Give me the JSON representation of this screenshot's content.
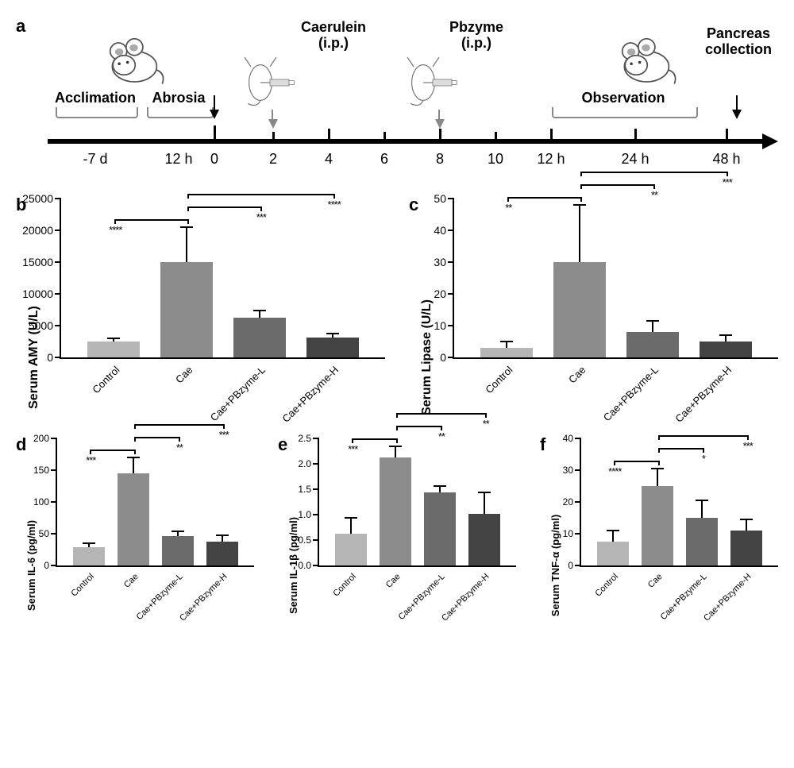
{
  "panel_a": {
    "label": "a",
    "phases": [
      {
        "label": "Acclimation",
        "tick": "-7 d"
      },
      {
        "label": "Abrosia",
        "tick": "12 h"
      }
    ],
    "treatments": [
      {
        "label_line1": "Caerulein",
        "label_line2": "(i.p.)"
      },
      {
        "label_line1": "Pbzyme",
        "label_line2": "(i.p.)"
      }
    ],
    "observation_label": "Observation",
    "end_label": "Pancreas\ncollection",
    "hour_ticks": [
      "0",
      "2",
      "4",
      "6",
      "8",
      "10",
      "12 h",
      "24 h",
      "48 h"
    ]
  },
  "categories": [
    "Control",
    "Cae",
    "Cae+PBzyme-L",
    "Cae+PBzyme-H"
  ],
  "bar_colors": [
    "#b5b5b5",
    "#8c8c8c",
    "#6b6b6b",
    "#434343"
  ],
  "charts": {
    "b": {
      "label": "b",
      "ylabel": "Serum AMY (U/L)",
      "ymax": 25000,
      "ytick_step": 5000,
      "values": [
        2500,
        15000,
        6200,
        3100
      ],
      "errors": [
        500,
        5500,
        1200,
        700
      ],
      "sig": [
        {
          "from": 0,
          "to": 1,
          "level": 0,
          "label": "****"
        },
        {
          "from": 1,
          "to": 2,
          "level": 1,
          "label": "***"
        },
        {
          "from": 1,
          "to": 3,
          "level": 2,
          "label": "****"
        }
      ]
    },
    "c": {
      "label": "c",
      "ylabel": "Serum Lipase (U/L)",
      "ymax": 50,
      "ytick_step": 10,
      "ymin_label_zero": true,
      "dec": 0,
      "values": [
        3,
        30,
        8,
        5
      ],
      "errors": [
        2,
        18,
        3.5,
        2
      ],
      "sig": [
        {
          "from": 0,
          "to": 1,
          "level": 0,
          "label": "**"
        },
        {
          "from": 1,
          "to": 2,
          "level": 1,
          "label": "**"
        },
        {
          "from": 1,
          "to": 3,
          "level": 2,
          "label": "***"
        }
      ]
    },
    "d": {
      "label": "d",
      "ylabel": "Serum IL-6 (pg/ml)",
      "ymax": 200,
      "ytick_step": 50,
      "values": [
        29,
        145,
        46,
        38
      ],
      "errors": [
        6,
        25,
        8,
        9
      ],
      "sig": [
        {
          "from": 0,
          "to": 1,
          "level": 0,
          "label": "***"
        },
        {
          "from": 1,
          "to": 2,
          "level": 1,
          "label": "**"
        },
        {
          "from": 1,
          "to": 3,
          "level": 2,
          "label": "***"
        }
      ]
    },
    "e": {
      "label": "e",
      "ylabel": "Serum IL-1β (pg/ml)",
      "ymax": 2.5,
      "ytick_step": 0.5,
      "dec": 1,
      "values": [
        0.63,
        2.12,
        1.44,
        1.02
      ],
      "errors": [
        0.3,
        0.22,
        0.12,
        0.42
      ],
      "sig": [
        {
          "from": 0,
          "to": 1,
          "level": 0,
          "label": "***"
        },
        {
          "from": 1,
          "to": 2,
          "level": 1,
          "label": "**"
        },
        {
          "from": 1,
          "to": 3,
          "level": 2,
          "label": "**"
        }
      ]
    },
    "f": {
      "label": "f",
      "ylabel": "Serum TNF-α (pg/ml)",
      "ymax": 40,
      "ytick_step": 10,
      "values": [
        7.5,
        25,
        15,
        11
      ],
      "errors": [
        3.5,
        5.5,
        5.5,
        3.5
      ],
      "sig": [
        {
          "from": 0,
          "to": 1,
          "level": 0,
          "label": "****"
        },
        {
          "from": 1,
          "to": 2,
          "level": 1,
          "label": "*"
        },
        {
          "from": 1,
          "to": 3,
          "level": 2,
          "label": "***"
        }
      ]
    }
  }
}
